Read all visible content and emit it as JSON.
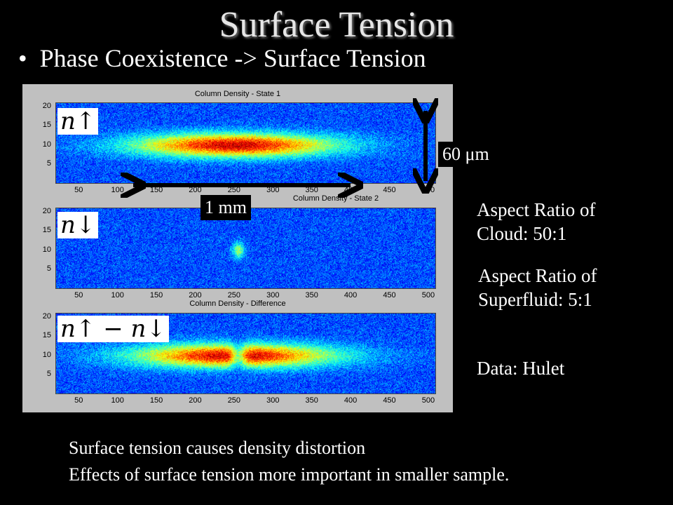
{
  "slide": {
    "title": "Surface Tension",
    "bullet": "Phase Coexistence -> Surface Tension",
    "bullet_marker": "•",
    "scale_height_label": "60 μm",
    "scale_width_label": "1 mm",
    "aspect_cloud_line1": "Aspect Ratio of",
    "aspect_cloud_line2": "Cloud: 50:1",
    "aspect_superfluid_line1": "Aspect Ratio of",
    "aspect_superfluid_line2": "Superfluid: 5:1",
    "data_credit": "Data: Hulet",
    "caption_line1": "Surface tension causes density distortion",
    "caption_line2": "Effects of surface tension more important in smaller sample.",
    "colors": {
      "background": "#000000",
      "text": "#ffffff",
      "figure_bg": "#c0c0c0"
    }
  },
  "chart_data": [
    {
      "type": "heatmap",
      "title": "Column Density - State 1",
      "symbol": "n↑",
      "x_ticks": [
        "50",
        "100",
        "150",
        "200",
        "250",
        "300",
        "350",
        "400",
        "450",
        "500"
      ],
      "y_ticks": [
        "20",
        "15",
        "10",
        "5"
      ],
      "xlim": [
        20,
        510
      ],
      "ylim": [
        0,
        21
      ],
      "blob": {
        "center_x": 250,
        "center_y": 10,
        "half_width_x": 190,
        "half_height_y": 4.5,
        "peak": 1.0
      }
    },
    {
      "type": "heatmap",
      "title": "Column Density - State 2",
      "symbol": "n↓",
      "x_ticks": [
        "50",
        "100",
        "150",
        "200",
        "250",
        "300",
        "350",
        "400",
        "450",
        "500"
      ],
      "y_ticks": [
        "20",
        "15",
        "10",
        "5"
      ],
      "xlim": [
        20,
        510
      ],
      "ylim": [
        0,
        21
      ],
      "blob": {
        "center_x": 255,
        "center_y": 10,
        "half_width_x": 12,
        "half_height_y": 3,
        "peak": 0.45
      }
    },
    {
      "type": "heatmap",
      "title": "Column Density - Difference",
      "symbol": "n↑ − n↓",
      "x_ticks": [
        "50",
        "100",
        "150",
        "200",
        "250",
        "300",
        "350",
        "400",
        "450",
        "500"
      ],
      "y_ticks": [
        "20",
        "15",
        "10",
        "5"
      ],
      "xlim": [
        20,
        510
      ],
      "ylim": [
        0,
        21
      ],
      "blob": {
        "center_x": 250,
        "center_y": 10,
        "half_width_x": 190,
        "half_height_y": 4.5,
        "peak": 1.0,
        "notch_x": 255,
        "notch_width": 10
      }
    }
  ]
}
